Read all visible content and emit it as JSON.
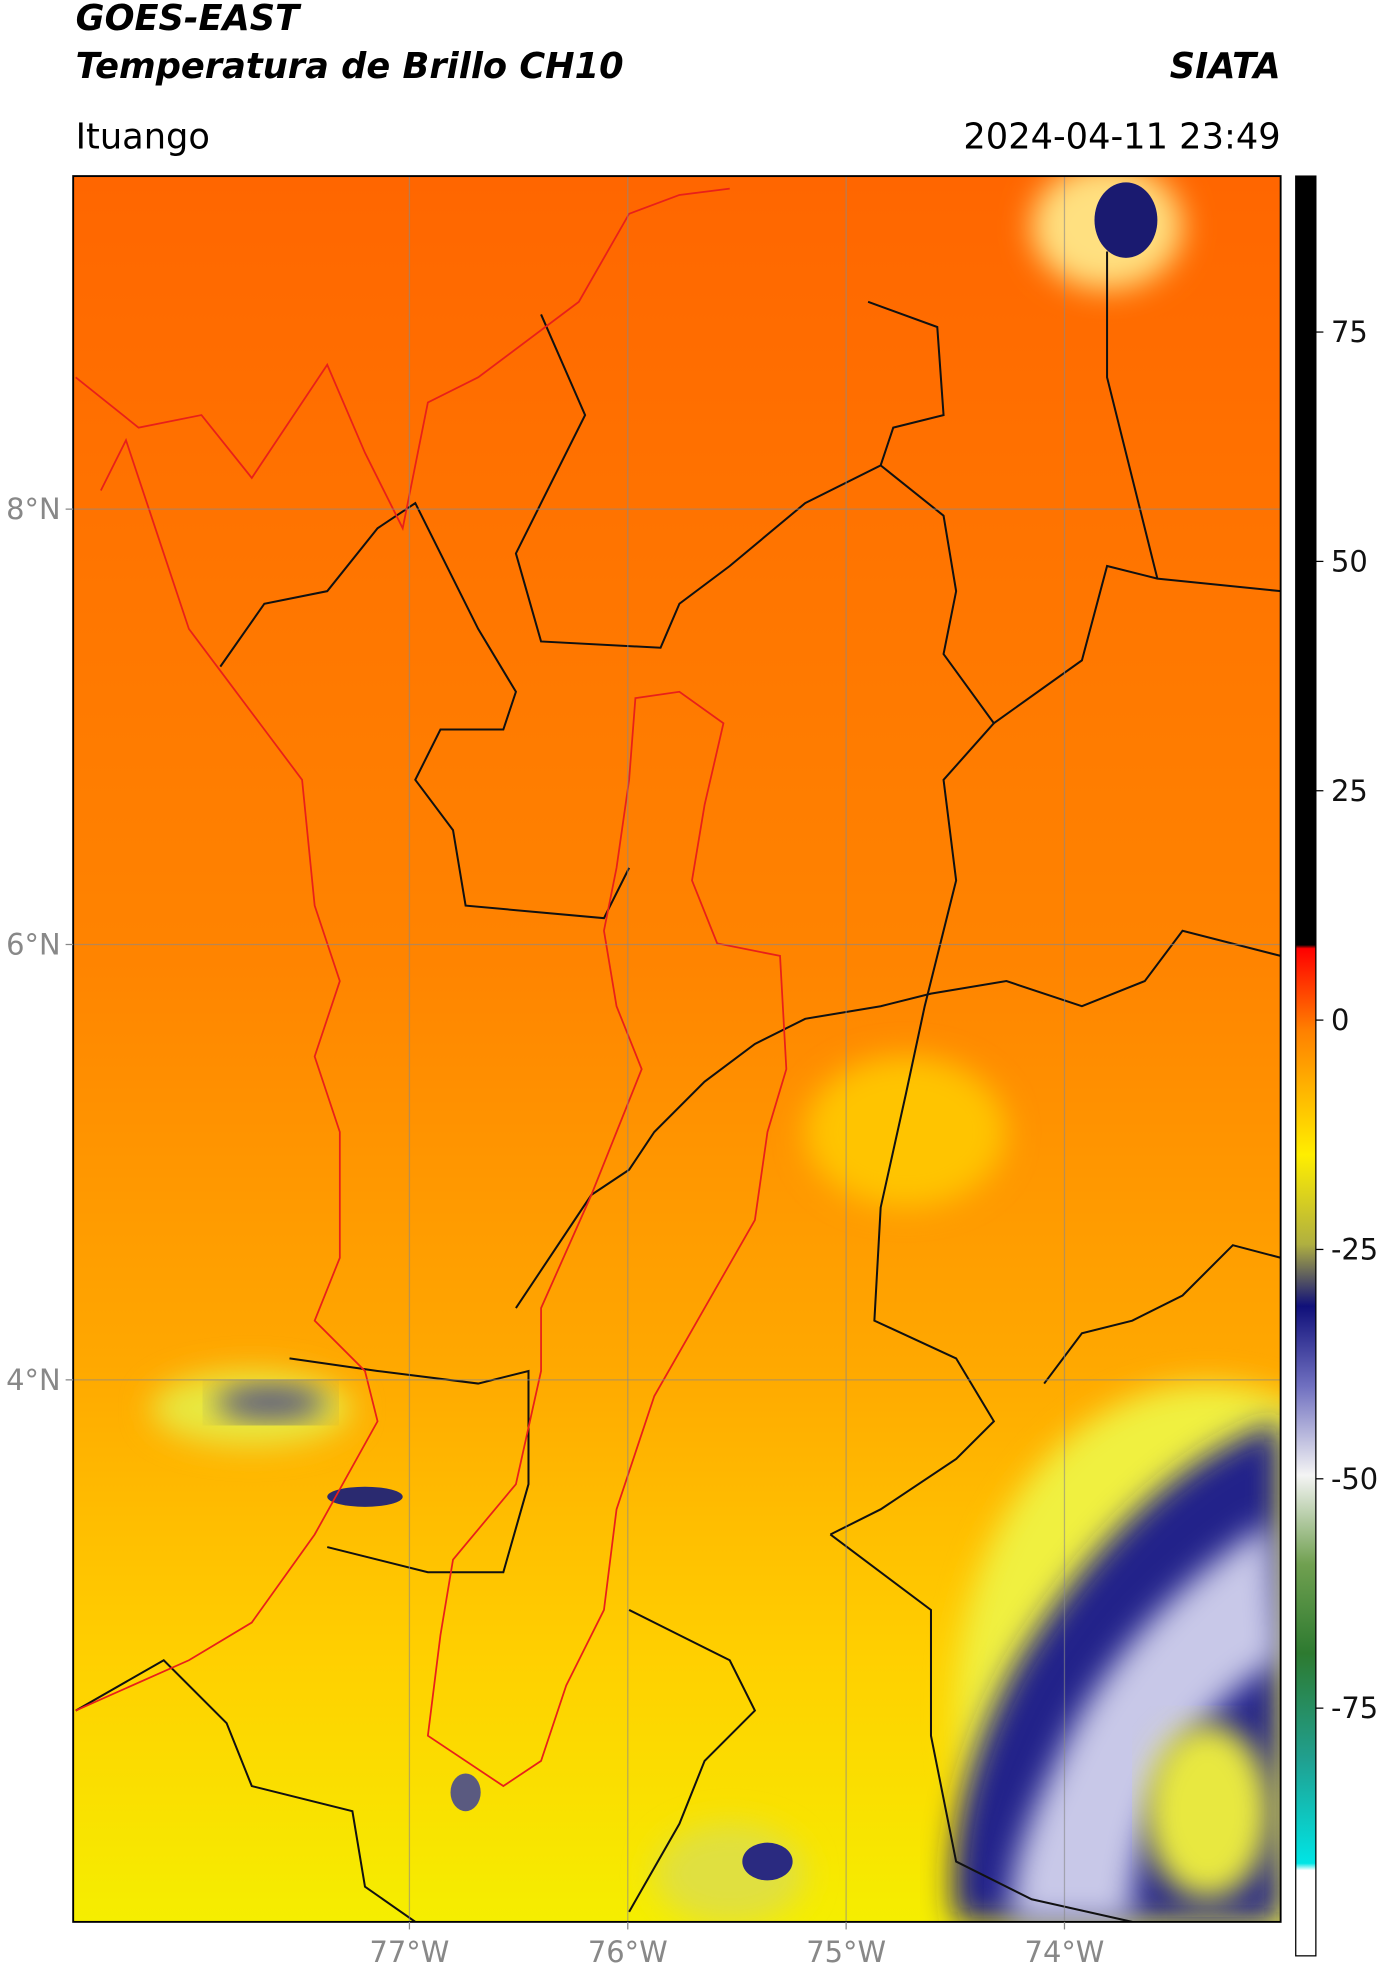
{
  "header": {
    "title": "GOES-EAST",
    "subtitle": "Temperatura de Brillo CH10",
    "source": "SIATA",
    "region": "Ituango",
    "timestamp": "2024-04-11 23:49"
  },
  "map": {
    "xlim": [
      -78.54,
      -73.01
    ],
    "ylim": [
      1.51,
      9.53
    ],
    "xticks": [
      {
        "value": -77,
        "label": "77°W"
      },
      {
        "value": -76,
        "label": "76°W"
      },
      {
        "value": -75,
        "label": "75°W"
      },
      {
        "value": -74,
        "label": "74°W"
      }
    ],
    "yticks": [
      {
        "value": 8,
        "label": "8°N"
      },
      {
        "value": 6,
        "label": "6°N"
      },
      {
        "value": 4,
        "label": "4°N"
      }
    ],
    "grid": true
  },
  "colorbar": {
    "lim": [
      -102,
      92
    ],
    "ticks": [
      75,
      50,
      25,
      0,
      -25,
      -50,
      -75
    ]
  }
}
